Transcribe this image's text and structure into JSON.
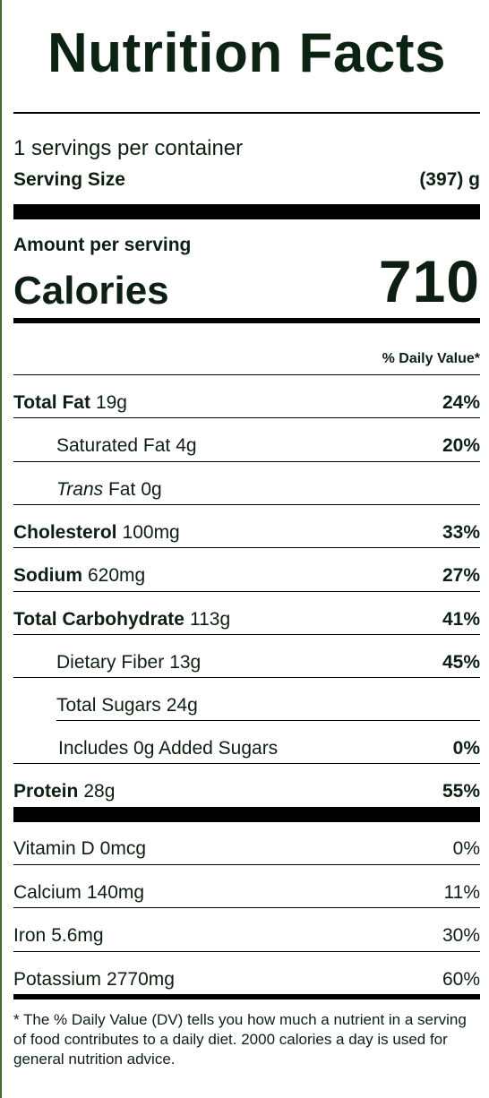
{
  "title": "Nutrition Facts",
  "servings": "1 servings per container",
  "serving_size": {
    "label": "Serving Size",
    "value": "(397) g"
  },
  "amount_per_serving": "Amount per serving",
  "calories": {
    "label": "Calories",
    "value": "710"
  },
  "daily_value_header": "% Daily Value*",
  "nutrients": [
    {
      "name": "Total Fat",
      "amount": "19g",
      "dv": "24%"
    },
    {
      "name": "Saturated Fat",
      "amount": "4g",
      "dv": "20%"
    },
    {
      "name_italic": "Trans",
      "name": "Fat",
      "amount": "0g",
      "dv": ""
    },
    {
      "name": "Cholesterol",
      "amount": "100mg",
      "dv": "33%"
    },
    {
      "name": "Sodium",
      "amount": "620mg",
      "dv": "27%"
    },
    {
      "name": "Total Carbohydrate",
      "amount": "113g",
      "dv": "41%"
    },
    {
      "name": "Dietary Fiber",
      "amount": "13g",
      "dv": "45%"
    },
    {
      "name": "Total Sugars",
      "amount": "24g",
      "dv": ""
    },
    {
      "name": "Includes 0g Added Sugars",
      "amount": "",
      "dv": "0%"
    },
    {
      "name": "Protein",
      "amount": "28g",
      "dv": "55%"
    }
  ],
  "vitamins": [
    {
      "name": "Vitamin D",
      "amount": "0mcg",
      "dv": "0%"
    },
    {
      "name": "Calcium",
      "amount": "140mg",
      "dv": "11%"
    },
    {
      "name": "Iron",
      "amount": "5.6mg",
      "dv": "30%"
    },
    {
      "name": "Potassium",
      "amount": "2770mg",
      "dv": "60%"
    }
  ],
  "footnote": "* The % Daily Value (DV) tells you how much a nutrient in a serving of food contributes to a daily diet. 2000 calories a day is used for general nutrition advice."
}
